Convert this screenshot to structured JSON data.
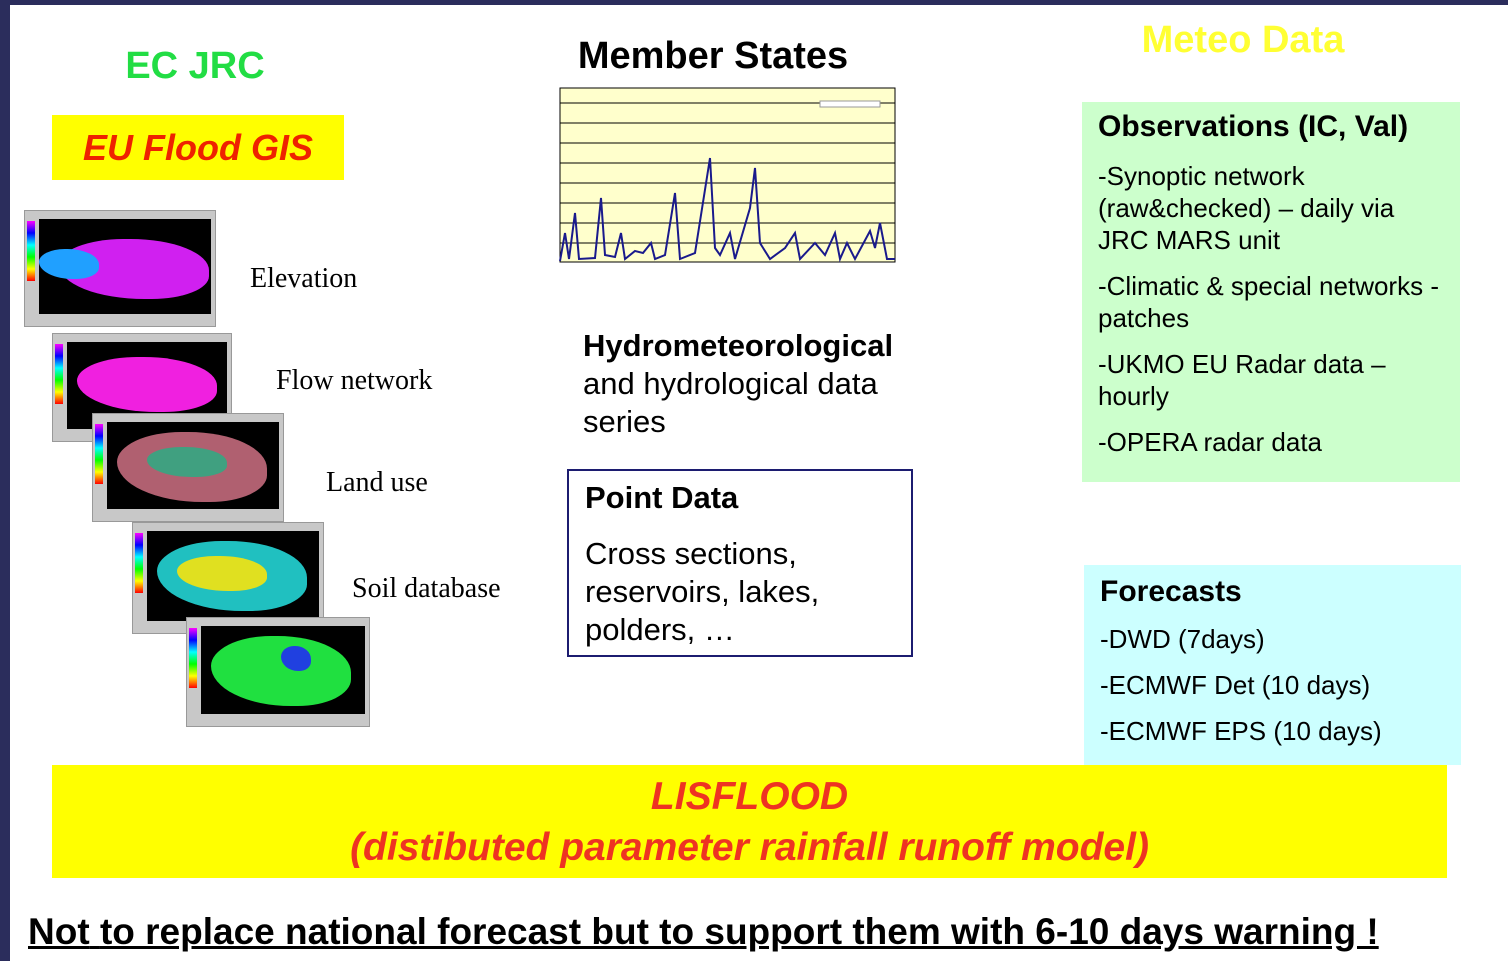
{
  "left": {
    "title": "EC JRC",
    "subtitle": "EU Flood GIS",
    "layers": [
      "Elevation",
      "Flow network",
      "Land use",
      "Soil database"
    ]
  },
  "middle": {
    "title": "Member States",
    "hydro_bold": "Hydrometeorological",
    "hydro_rest": "and hydrological data series",
    "point_data": {
      "title": "Point Data",
      "text": "Cross sections, reservoirs, lakes, polders, …"
    }
  },
  "right": {
    "title": "Meteo Data",
    "observations": {
      "title": "Observations (IC, Val)",
      "items": [
        "-Synoptic network (raw&checked) – daily via JRC MARS unit",
        "-Climatic & special networks - patches",
        "-UKMO EU Radar data – hourly",
        "-OPERA radar data"
      ]
    },
    "forecasts": {
      "title": "Forecasts",
      "items": [
        "-DWD (7days)",
        "-ECMWF Det (10 days)",
        "-ECMWF EPS (10 days)"
      ]
    }
  },
  "model": {
    "name": "LISFLOOD",
    "description": "(distibuted parameter rainfall runoff model)"
  },
  "footer": {
    "first": "Not",
    "rest": "to replace national forecast but to support them with 6-10 days warning !"
  }
}
